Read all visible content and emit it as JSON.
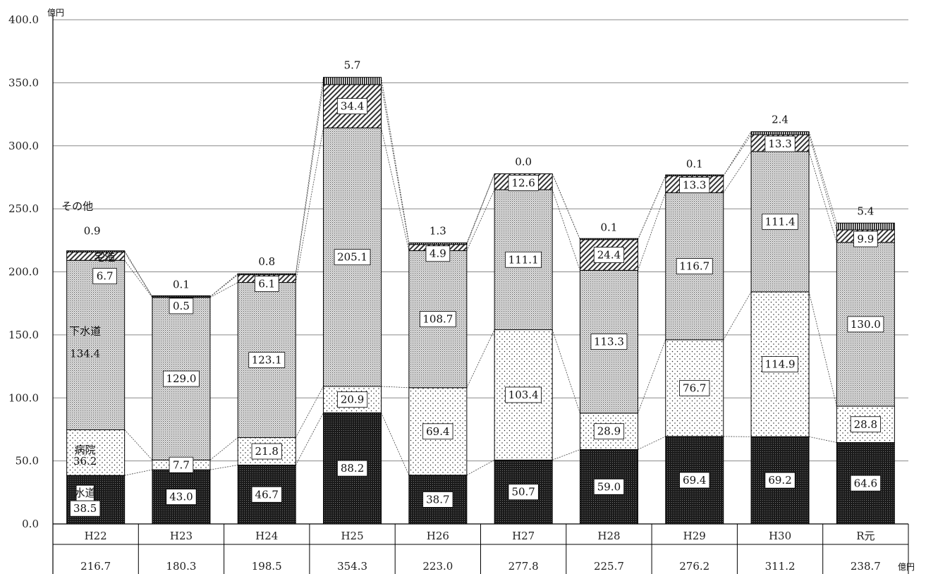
{
  "chart_data": {
    "type": "bar",
    "stacked": true,
    "title": "",
    "y_unit": "億円",
    "total_unit": "億円",
    "ylim": [
      0,
      400
    ],
    "yticks": [
      "0.0",
      "50.0",
      "100.0",
      "150.0",
      "200.0",
      "250.0",
      "300.0",
      "350.0",
      "400.0"
    ],
    "grid": true,
    "categories": [
      "H22",
      "H23",
      "H24",
      "H25",
      "H26",
      "H27",
      "H28",
      "H29",
      "H30",
      "R元"
    ],
    "totals": [
      "216.7",
      "180.3",
      "198.5",
      "354.3",
      "223.0",
      "277.8",
      "225.7",
      "276.2",
      "311.2",
      "238.7"
    ],
    "series": [
      {
        "name": "水道",
        "values": [
          38.5,
          43.0,
          46.7,
          88.2,
          38.7,
          50.7,
          59.0,
          69.4,
          69.2,
          64.6
        ],
        "pattern": "dark"
      },
      {
        "name": "病院",
        "values": [
          36.2,
          7.7,
          21.8,
          20.9,
          69.4,
          103.4,
          28.9,
          76.7,
          114.9,
          28.8
        ],
        "pattern": "sparse-dots"
      },
      {
        "name": "下水道",
        "values": [
          134.4,
          129.0,
          123.1,
          205.1,
          108.7,
          111.1,
          113.3,
          116.7,
          111.4,
          130.0
        ],
        "pattern": "dense-dots"
      },
      {
        "name": "宅造",
        "values": [
          6.7,
          0.5,
          6.1,
          34.4,
          4.9,
          12.6,
          24.4,
          13.3,
          13.3,
          9.9
        ],
        "pattern": "diagonal"
      },
      {
        "name": "その他",
        "values": [
          0.9,
          0.1,
          0.8,
          5.7,
          1.3,
          0.0,
          0.1,
          0.1,
          2.4,
          5.4
        ],
        "pattern": "vertical"
      }
    ],
    "data_labels": [
      [
        "38.5",
        "43.0",
        "46.7",
        "88.2",
        "38.7",
        "50.7",
        "59.0",
        "69.4",
        "69.2",
        "64.6"
      ],
      [
        "36.2",
        "7.7",
        "21.8",
        "20.9",
        "69.4",
        "103.4",
        "28.9",
        "76.7",
        "114.9",
        "28.8"
      ],
      [
        "134.4",
        "129.0",
        "123.1",
        "205.1",
        "108.7",
        "111.1",
        "113.3",
        "116.7",
        "111.4",
        "130.0"
      ],
      [
        "6.7",
        "0.5",
        "6.1",
        "34.4",
        "4.9",
        "12.6",
        "24.4",
        "13.3",
        "13.3",
        "9.9"
      ],
      [
        "0.9",
        "0.1",
        "0.8",
        "5.7",
        "1.3",
        "0.0",
        "0.1",
        "0.1",
        "2.4",
        "5.4"
      ]
    ]
  }
}
